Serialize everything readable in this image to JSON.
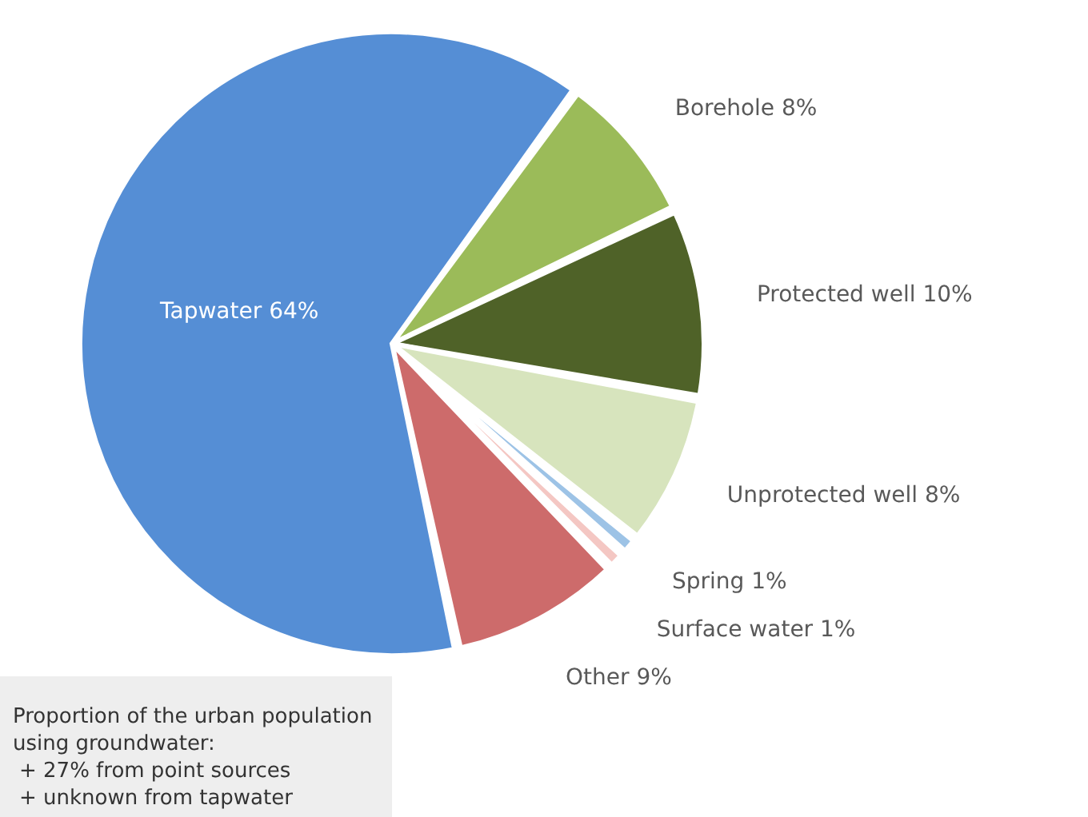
{
  "chart_data": {
    "type": "pie",
    "categories": [
      "Borehole",
      "Protected well",
      "Unprotected well",
      "Spring",
      "Surface water",
      "Other",
      "Tapwater"
    ],
    "values": [
      8,
      10,
      8,
      1,
      1,
      9,
      64
    ],
    "value_labels": [
      "8%",
      "10%",
      "8%",
      "1%",
      "1%",
      "9%",
      "64%"
    ],
    "colors": [
      "#9bbb59",
      "#4f6228",
      "#d7e4bd",
      "#9dc3e6",
      "#f4c7c3",
      "#cd6b6b",
      "#558ed5"
    ],
    "annotations": [
      "Proportion of the urban population",
      "using groundwater:",
      "+ 27% from point sources",
      "+ unknown from tapwater"
    ]
  }
}
